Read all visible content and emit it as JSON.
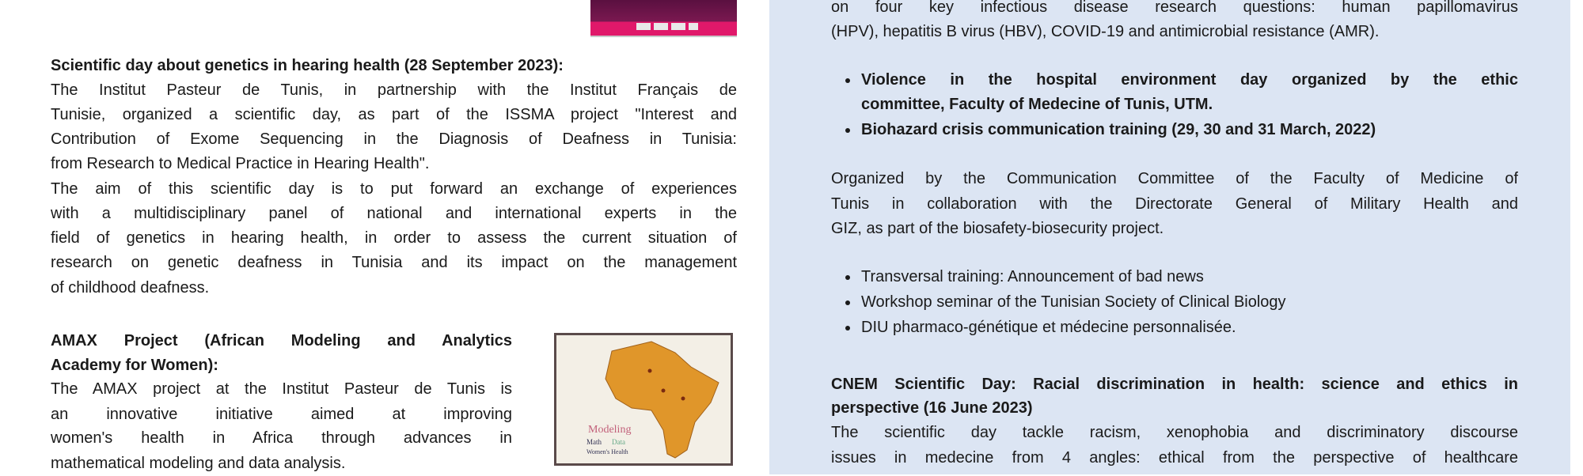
{
  "left": {
    "hearing": {
      "title": "Scientific day about genetics in hearing health (28 September 2023):",
      "lines": [
        "The Institut Pasteur de Tunis, in partnership with the Institut Français de",
        "Tunisie, organized a scientific day, as part of the ISSMA project \"Interest and",
        "Contribution of Exome Sequencing in the Diagnosis of Deafness in Tunisia:",
        "from Research to Medical Practice in Hearing Health\".",
        "The aim of this scientific day is to put forward an exchange of experiences",
        "with a multidisciplinary panel of national and international experts in the",
        "field of genetics in hearing health, in order to assess the current situation of",
        "research on genetic deafness in Tunisia and its impact on the management",
        "of childhood deafness."
      ]
    },
    "amax": {
      "title_lines": [
        "AMAX Project (African Modeling and Analytics",
        "Academy for Women):"
      ],
      "lines": [
        "The AMAX project at the Institut Pasteur de Tunis is",
        "an innovative initiative aimed at improving",
        "women's health in Africa through advances in",
        "mathematical modeling and data analysis."
      ],
      "image_words": [
        "Modeling",
        "Math",
        "Data",
        "Women's Health"
      ]
    }
  },
  "right": {
    "intro_lines": [
      "on four key infectious disease research questions: human papillomavirus",
      "(HPV), hepatitis B virus (HBV), COVID-19 and antimicrobial resistance (AMR)."
    ],
    "bold_bullets": [
      [
        "Violence in the hospital environment day organized by the ethic",
        "committee, Faculty of Medecine of Tunis, UTM."
      ],
      [
        "Biohazard crisis communication training (29, 30 and 31 March, 2022)"
      ]
    ],
    "organized_lines": [
      "Organized by the Communication Committee of the Faculty of Medicine of",
      "Tunis in collaboration with the Directorate General of Military Health and",
      "GIZ, as part of the biosafety-biosecurity project."
    ],
    "bullets": [
      "Transversal training: Announcement of bad news",
      "Workshop seminar of the Tunisian Society of Clinical Biology",
      "DIU pharmaco-génétique et médecine personnalisée."
    ],
    "cnem": {
      "title_lines": [
        "CNEM Scientific Day: Racial discrimination in health: science and ethics in",
        "perspective (16 June 2023)"
      ],
      "lines": [
        "The scientific day tackle racism, xenophobia and discriminatory discourse",
        "issues in medecine from 4 angles: ethical from the perspective of healthcare"
      ]
    }
  },
  "colors": {
    "panel": "#dce5f3",
    "text": "#1a1a1a",
    "poster_pink": "#e0186a",
    "map_orange": "#e0962a"
  }
}
